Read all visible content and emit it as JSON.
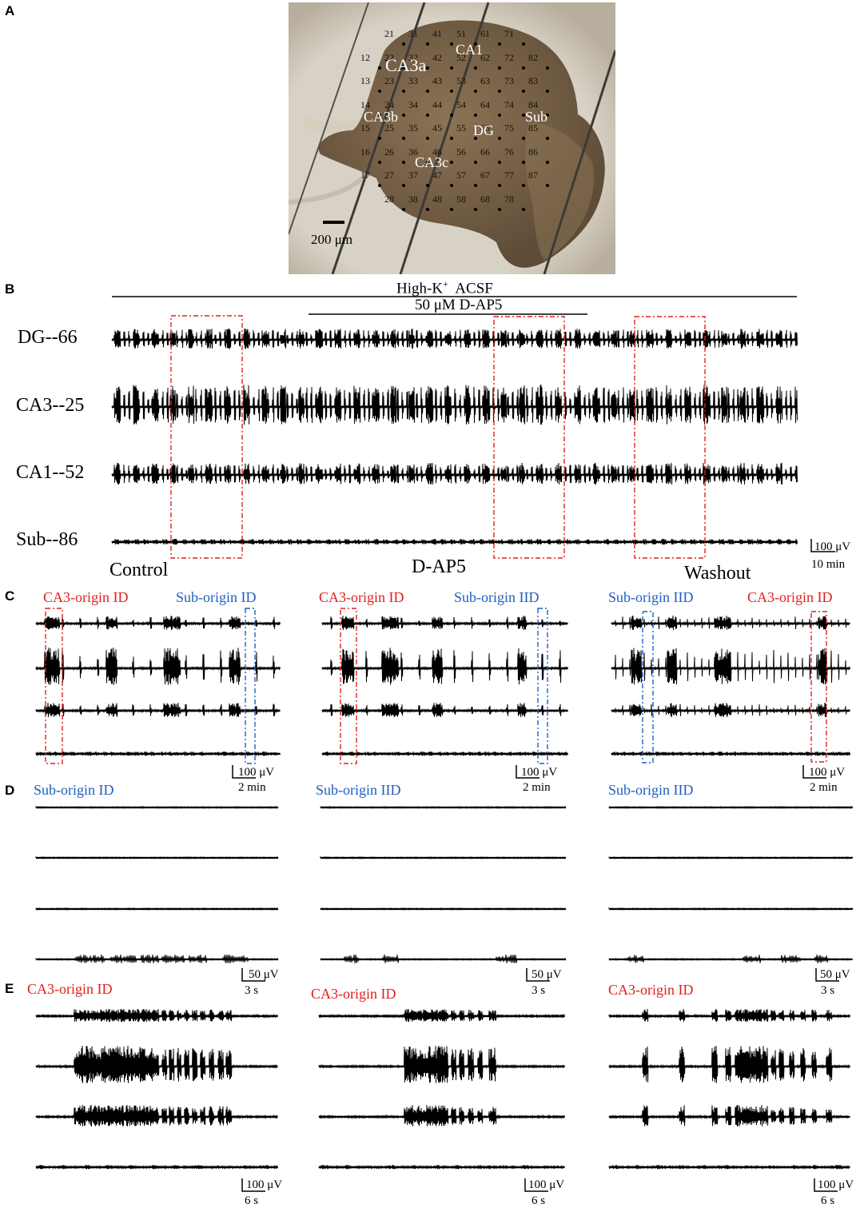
{
  "panels": {
    "A": "A",
    "B": "B",
    "C": "C",
    "D": "D",
    "E": "E"
  },
  "photo": {
    "regions": {
      "ca3a": "CA3a",
      "ca1": "CA1",
      "ca3b": "CA3b",
      "dg": "DG",
      "sub": "Sub",
      "ca3c": "CA3c"
    },
    "scalebar": "200 μm",
    "electrode_rows": [
      [
        "21",
        "31",
        "41",
        "51",
        "61",
        "71"
      ],
      [
        "12",
        "22",
        "32",
        "42",
        "52",
        "62",
        "72",
        "82"
      ],
      [
        "13",
        "23",
        "33",
        "43",
        "53",
        "63",
        "73",
        "83"
      ],
      [
        "14",
        "24",
        "34",
        "44",
        "54",
        "64",
        "74",
        "84"
      ],
      [
        "15",
        "25",
        "35",
        "45",
        "55",
        "65",
        "75",
        "85"
      ],
      [
        "16",
        "26",
        "36",
        "46",
        "56",
        "66",
        "76",
        "86"
      ],
      [
        "17",
        "27",
        "37",
        "47",
        "57",
        "67",
        "77",
        "87"
      ],
      [
        "28",
        "38",
        "48",
        "58",
        "68",
        "78"
      ]
    ]
  },
  "panel_b": {
    "acsf_label": "High-K",
    "acsf_sup": "+",
    "acsf_suffix": "  ACSF",
    "drug_label": "50 μM D-AP5",
    "channels": [
      "DG--66",
      "CA3--25",
      "CA1--52",
      "Sub--86"
    ],
    "conditions": [
      "Control",
      "D-AP5",
      "Washout"
    ],
    "scale_v": "100 μV",
    "scale_t": "10 min"
  },
  "panel_c": {
    "columns": [
      {
        "left": "CA3-origin ID",
        "right": "Sub-origin ID",
        "left_color": "red",
        "right_color": "blue",
        "scale_v": "100 μV",
        "scale_t": "2 min"
      },
      {
        "left": "CA3-origin ID",
        "right": "Sub-origin IID",
        "left_color": "red",
        "right_color": "blue",
        "scale_v": "100 μV",
        "scale_t": "2 min"
      },
      {
        "left": "Sub-origin IID",
        "right": "CA3-origin ID",
        "left_color": "blue",
        "right_color": "red",
        "scale_v": "100 μV",
        "scale_t": "2 min"
      }
    ]
  },
  "panel_d": {
    "titles": [
      "Sub-origin ID",
      "Sub-origin IID",
      "Sub-origin IID"
    ],
    "scale_v": "50 μV",
    "scale_t": "3 s"
  },
  "panel_e": {
    "titles": [
      "CA3-origin ID",
      "CA3-origin ID",
      "CA3-origin ID"
    ],
    "scale_v": "100 μV",
    "scale_t": "6 s"
  },
  "colors": {
    "red_box": "#e0201c",
    "blue_box": "#1f5fbf",
    "trace": "#000000"
  }
}
